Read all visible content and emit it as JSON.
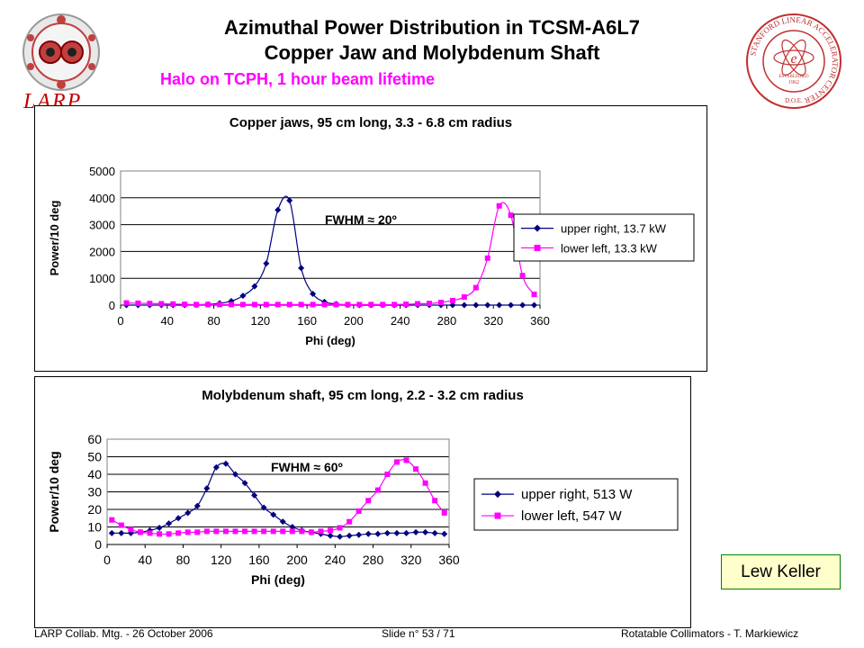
{
  "slide": {
    "title_line1": "Azimuthal Power Distribution in TCSM-A6L7",
    "title_line2": "Copper Jaw and Molybdenum Shaft",
    "subtitle": "Halo on TCPH, 1 hour beam lifetime",
    "larp_logo_text": "LARP",
    "author": "Lew Keller",
    "footer_left": "LARP Collab. Mtg.  - 26 October 2006",
    "footer_center": "Slide n° 53 / 71",
    "footer_right": "Rotatable Collimators - T. Markiewicz",
    "slac_seal_text": "STANFORD LINEAR ACCELERATOR CENTER",
    "slac_seal_year": "1962",
    "slac_seal_doe": "D.O.E.",
    "slac_seal_established": "ESTABLISHED",
    "colors": {
      "upper_right": "#000080",
      "lower_left": "#ff00ff",
      "subtitle": "#ff00ff",
      "author_bg": "#ffffcc"
    }
  },
  "chart_data": [
    {
      "type": "line",
      "title": "Copper jaws, 95 cm long, 3.3 - 6.8 cm radius",
      "xlabel": "Phi (deg)",
      "ylabel": "Power/10 deg",
      "xlim": [
        0,
        360
      ],
      "ylim": [
        0,
        5000
      ],
      "xticks": [
        0,
        40,
        80,
        120,
        160,
        200,
        240,
        280,
        320,
        360
      ],
      "yticks": [
        0,
        1000,
        2000,
        3000,
        4000,
        5000
      ],
      "grid": "horizontal",
      "legend_position": "right",
      "annotation": "FWHM ≈ 20º",
      "x": [
        5,
        15,
        25,
        35,
        45,
        55,
        65,
        75,
        85,
        95,
        105,
        115,
        125,
        135,
        145,
        155,
        165,
        175,
        185,
        195,
        205,
        215,
        225,
        235,
        245,
        255,
        265,
        275,
        285,
        295,
        305,
        315,
        325,
        335,
        345,
        355
      ],
      "series": [
        {
          "name": "upper right, 13.7 kW",
          "marker": "diamond",
          "color": "#000080",
          "values": [
            0,
            0,
            0,
            0,
            0,
            0,
            10,
            30,
            70,
            150,
            350,
            700,
            1550,
            3550,
            3900,
            1380,
            420,
            120,
            40,
            10,
            0,
            0,
            0,
            0,
            0,
            0,
            0,
            0,
            0,
            0,
            0,
            0,
            0,
            0,
            0,
            0
          ]
        },
        {
          "name": "lower left, 13.3 kW",
          "marker": "square",
          "color": "#ff00ff",
          "values": [
            80,
            70,
            60,
            50,
            40,
            30,
            20,
            20,
            20,
            20,
            20,
            20,
            20,
            20,
            20,
            20,
            20,
            20,
            20,
            20,
            20,
            20,
            20,
            20,
            30,
            50,
            60,
            100,
            170,
            300,
            650,
            1750,
            3700,
            3350,
            1100,
            400
          ]
        }
      ]
    },
    {
      "type": "line",
      "title": "Molybdenum shaft, 95 cm long, 2.2 - 3.2 cm radius",
      "xlabel": "Phi (deg)",
      "ylabel": "Power/10 deg",
      "xlim": [
        0,
        360
      ],
      "ylim": [
        0,
        60
      ],
      "xticks": [
        0,
        40,
        80,
        120,
        160,
        200,
        240,
        280,
        320,
        360
      ],
      "yticks": [
        0,
        10,
        20,
        30,
        40,
        50,
        60
      ],
      "grid": "horizontal",
      "legend_position": "right",
      "annotation": "FWHM ≈ 60º",
      "x": [
        5,
        15,
        25,
        35,
        45,
        55,
        65,
        75,
        85,
        95,
        105,
        115,
        125,
        135,
        145,
        155,
        165,
        175,
        185,
        195,
        205,
        215,
        225,
        235,
        245,
        255,
        265,
        275,
        285,
        295,
        305,
        315,
        325,
        335,
        345,
        355
      ],
      "series": [
        {
          "name": "upper right, 513 W",
          "marker": "diamond",
          "color": "#000080",
          "values": [
            6.5,
            6.5,
            6.5,
            7,
            8,
            9.5,
            12,
            15,
            18,
            22,
            32,
            44,
            46,
            40,
            35,
            28,
            21,
            17,
            13,
            10,
            8,
            7,
            6,
            5,
            4.5,
            5,
            5.5,
            6,
            6,
            6.5,
            6.5,
            6.5,
            7,
            7,
            6.5,
            6
          ]
        },
        {
          "name": "lower left, 547 W",
          "marker": "square",
          "color": "#ff00ff",
          "values": [
            14,
            11,
            8.5,
            7,
            6.5,
            6,
            6,
            6.5,
            7,
            7,
            7.5,
            7.5,
            7.5,
            7.5,
            7.5,
            7.5,
            7.5,
            7.5,
            7.5,
            7.5,
            7.5,
            7,
            7.5,
            8,
            9.5,
            13,
            19,
            25,
            31,
            40,
            47,
            48,
            43,
            35,
            25,
            18
          ]
        }
      ]
    }
  ]
}
